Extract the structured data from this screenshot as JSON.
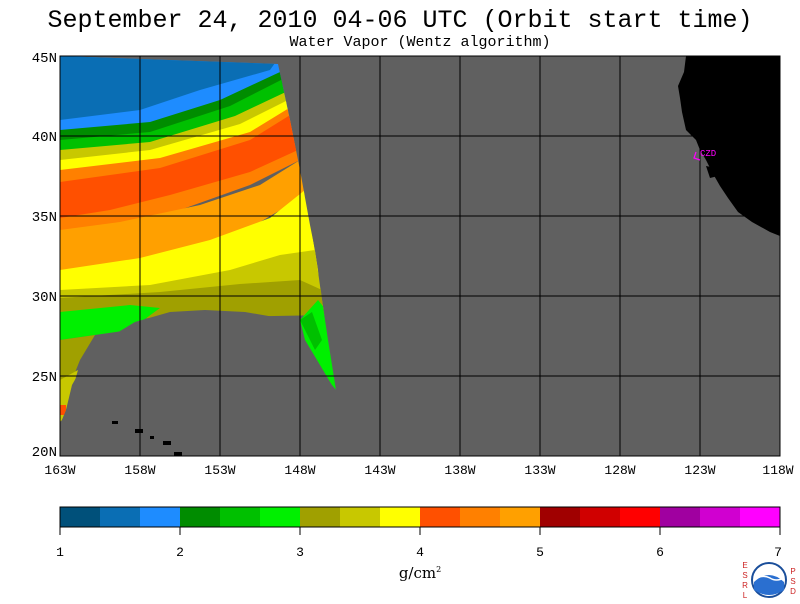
{
  "title": "September 24, 2010  04-06 UTC  (Orbit start time)",
  "subtitle": "Water Vapor (Wentz algorithm)",
  "lat_labels": [
    "45N",
    "40N",
    "35N",
    "30N",
    "25N",
    "20N"
  ],
  "lon_labels": [
    "163W",
    "158W",
    "153W",
    "148W",
    "143W",
    "138W",
    "133W",
    "128W",
    "123W",
    "118W"
  ],
  "station_label": "CZD",
  "colorbar": {
    "colors": [
      "#00507a",
      "#0a6eb4",
      "#1e8cff",
      "#008c00",
      "#00c000",
      "#00f000",
      "#a0a000",
      "#c8c800",
      "#ffff00",
      "#ff5000",
      "#ff8000",
      "#ffa000",
      "#a00000",
      "#d00000",
      "#ff0000",
      "#a000a0",
      "#d000d0",
      "#ff00ff"
    ],
    "tick_labels": [
      "1",
      "2",
      "3",
      "4",
      "5",
      "6",
      "7"
    ]
  },
  "unit_label": "g/cm",
  "unit_sup": "2",
  "logo_letters_left": [
    "E",
    "S",
    "R",
    "L"
  ],
  "logo_letters_right": [
    "P",
    "S",
    "D"
  ],
  "colors": {
    "land": "#000000",
    "no_data": "#606060",
    "station": "#ff00ff"
  }
}
